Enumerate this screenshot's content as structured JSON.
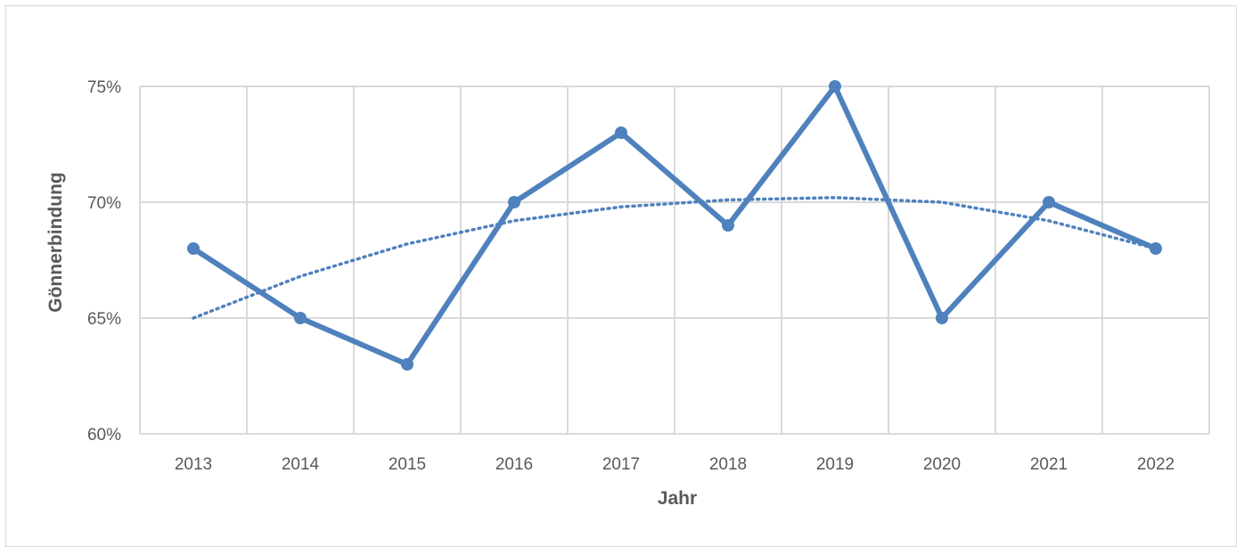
{
  "chart_data": {
    "type": "line",
    "title": "",
    "xlabel": "Jahr",
    "ylabel": "Gönnerbindung",
    "categories": [
      "2013",
      "2014",
      "2015",
      "2016",
      "2017",
      "2018",
      "2019",
      "2020",
      "2021",
      "2022"
    ],
    "series": [
      {
        "values": [
          68,
          65,
          63,
          70,
          73,
          69,
          75,
          65,
          70,
          68
        ],
        "color": "#4f81bd",
        "marker": "circle"
      }
    ],
    "trendline": {
      "type": "polynomial",
      "style": "dotted",
      "color": "#4f81bd",
      "values": [
        65.0,
        66.8,
        68.2,
        69.2,
        69.8,
        70.1,
        70.2,
        70.0,
        69.2,
        68.0
      ]
    },
    "yticks": [
      "60%",
      "65%",
      "70%",
      "75%"
    ],
    "ylim": [
      60,
      75
    ],
    "grid": true,
    "legend": "none"
  }
}
